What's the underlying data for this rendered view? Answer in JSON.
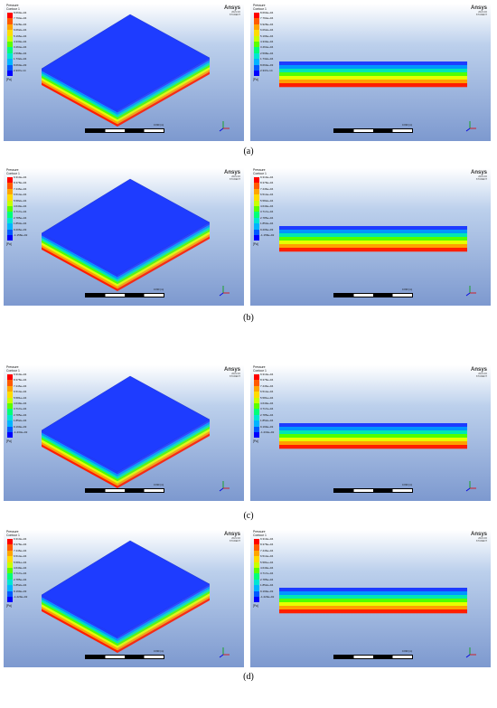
{
  "panels": [
    {
      "caption": "(a)",
      "left": {
        "title": "Pressure\nContour 1",
        "unit": "[Pa]",
        "ticks": [
          "8.660e+04",
          "7.794e+04",
          "6.928e+04",
          "6.062e+04",
          "5.196e+04",
          "4.330e+04",
          "3.464e+04",
          "2.598e+04",
          "1.732e+04",
          "8.660e+03",
          "2.337e-14"
        ],
        "scale_label": "0.030 (m)"
      },
      "right": {
        "title": "Pressure\nContour 1",
        "unit": "[Pa]",
        "ticks": [
          "8.660e+04",
          "7.794e+04",
          "6.928e+04",
          "6.062e+04",
          "5.196e+04",
          "4.330e+04",
          "3.464e+04",
          "2.598e+04",
          "1.732e+04",
          "8.660e+03",
          "2.337e-14"
        ],
        "scale_label": "0.030 (m)"
      }
    },
    {
      "caption": "(b)",
      "left": {
        "title": "Pressure\nContour 1",
        "unit": "[Pa]",
        "ticks": [
          "9.310e+04",
          "8.378e+04",
          "7.446e+04",
          "6.514e+04",
          "5.582e+04",
          "4.649e+04",
          "3.717e+04",
          "2.785e+04",
          "1.853e+04",
          "9.206e+03",
          "-1.158e+02"
        ],
        "scale_label": "0.030 (m)"
      },
      "right": {
        "title": "Pressure\nContour 1",
        "unit": "[Pa]",
        "ticks": [
          "9.310e+04",
          "8.378e+04",
          "7.446e+04",
          "6.514e+04",
          "5.582e+04",
          "4.649e+04",
          "3.717e+04",
          "2.785e+04",
          "1.853e+04",
          "9.206e+03",
          "-1.158e+02"
        ],
        "scale_label": "0.030 (m)"
      }
    },
    {
      "caption": "(c)",
      "left": {
        "title": "Pressure\nContour 1",
        "unit": "[Pa]",
        "ticks": [
          "9.310e+04",
          "8.378e+04",
          "7.446e+04",
          "6.514e+04",
          "5.581e+04",
          "4.649e+04",
          "3.717e+04",
          "2.785e+04",
          "1.852e+04",
          "9.199e+03",
          "-1.233e+02"
        ],
        "scale_label": "0.030 (m)"
      },
      "right": {
        "title": "Pressure\nContour 1",
        "unit": "[Pa]",
        "ticks": [
          "9.310e+04",
          "8.378e+04",
          "7.446e+04",
          "6.514e+04",
          "5.581e+04",
          "4.649e+04",
          "3.717e+04",
          "2.785e+04",
          "1.852e+04",
          "9.199e+03",
          "-1.233e+02"
        ],
        "scale_label": "0.030 (m)"
      }
    },
    {
      "caption": "(d)",
      "left": {
        "title": "Pressure\nContour 1",
        "unit": "[Pa]",
        "ticks": [
          "9.310e+04",
          "8.378e+04",
          "7.446e+04",
          "6.514e+04",
          "5.581e+04",
          "4.649e+04",
          "3.717e+04",
          "2.785e+04",
          "1.852e+04",
          "9.199e+03",
          "-1.229e+02"
        ],
        "scale_label": "0.030 (m)"
      },
      "right": {
        "title": "Pressure\nContour 1",
        "unit": "[Pa]",
        "ticks": [
          "9.310e+04",
          "8.378e+04",
          "7.446e+04",
          "6.514e+04",
          "5.581e+04",
          "4.649e+04",
          "3.717e+04",
          "2.785e+04",
          "1.852e+04",
          "9.199e+03",
          "-1.229e+02"
        ],
        "scale_label": "0.030 (m)"
      }
    }
  ],
  "brand": {
    "name": "Ansys",
    "version": "2021 R2",
    "edition": "STUDENT"
  },
  "colors": {
    "legend": [
      "#ff0000",
      "#ff5a00",
      "#ffa500",
      "#ffdc00",
      "#c8ff00",
      "#5aff00",
      "#00ff78",
      "#00e6d2",
      "#00b4ff",
      "#005aff",
      "#0000ff"
    ],
    "top_face": "#1e3cff"
  }
}
